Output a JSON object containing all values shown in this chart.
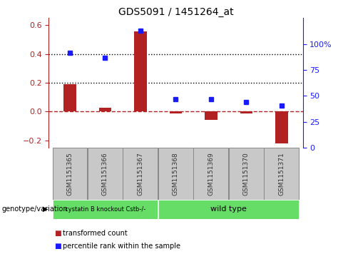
{
  "title": "GDS5091 / 1451264_at",
  "samples": [
    "GSM1151365",
    "GSM1151366",
    "GSM1151367",
    "GSM1151368",
    "GSM1151369",
    "GSM1151370",
    "GSM1151371"
  ],
  "bar_values": [
    0.19,
    0.025,
    0.56,
    -0.01,
    -0.055,
    -0.01,
    -0.22
  ],
  "dot_values": [
    0.41,
    0.375,
    0.565,
    0.085,
    0.085,
    0.065,
    0.04
  ],
  "bar_color": "#b22222",
  "dot_color": "#1a1aff",
  "ylim_left": [
    -0.25,
    0.65
  ],
  "ylim_right": [
    0,
    125
  ],
  "yticks_left": [
    -0.2,
    0.0,
    0.2,
    0.4,
    0.6
  ],
  "yticks_right": [
    0,
    25,
    50,
    75,
    100
  ],
  "ytick_labels_right": [
    "0",
    "25",
    "50",
    "75",
    "100%"
  ],
  "hline_y": [
    0.2,
    0.4
  ],
  "groups": [
    {
      "label": "cystatin B knockout Cstb-/-",
      "start": 0,
      "end": 3,
      "color": "#66dd66"
    },
    {
      "label": "wild type",
      "start": 3,
      "end": 7,
      "color": "#66dd66"
    }
  ],
  "genotype_label": "genotype/variation",
  "legend_items": [
    {
      "label": "transformed count",
      "color": "#b22222"
    },
    {
      "label": "percentile rank within the sample",
      "color": "#1a1aff"
    }
  ],
  "bar_width": 0.35,
  "background_color": "#ffffff",
  "zero_line_color": "#b22222",
  "tick_label_color_left": "#b22222",
  "tick_label_color_right": "#1a1aff",
  "sample_box_color": "#c8c8c8",
  "sample_box_edge": "#888888"
}
